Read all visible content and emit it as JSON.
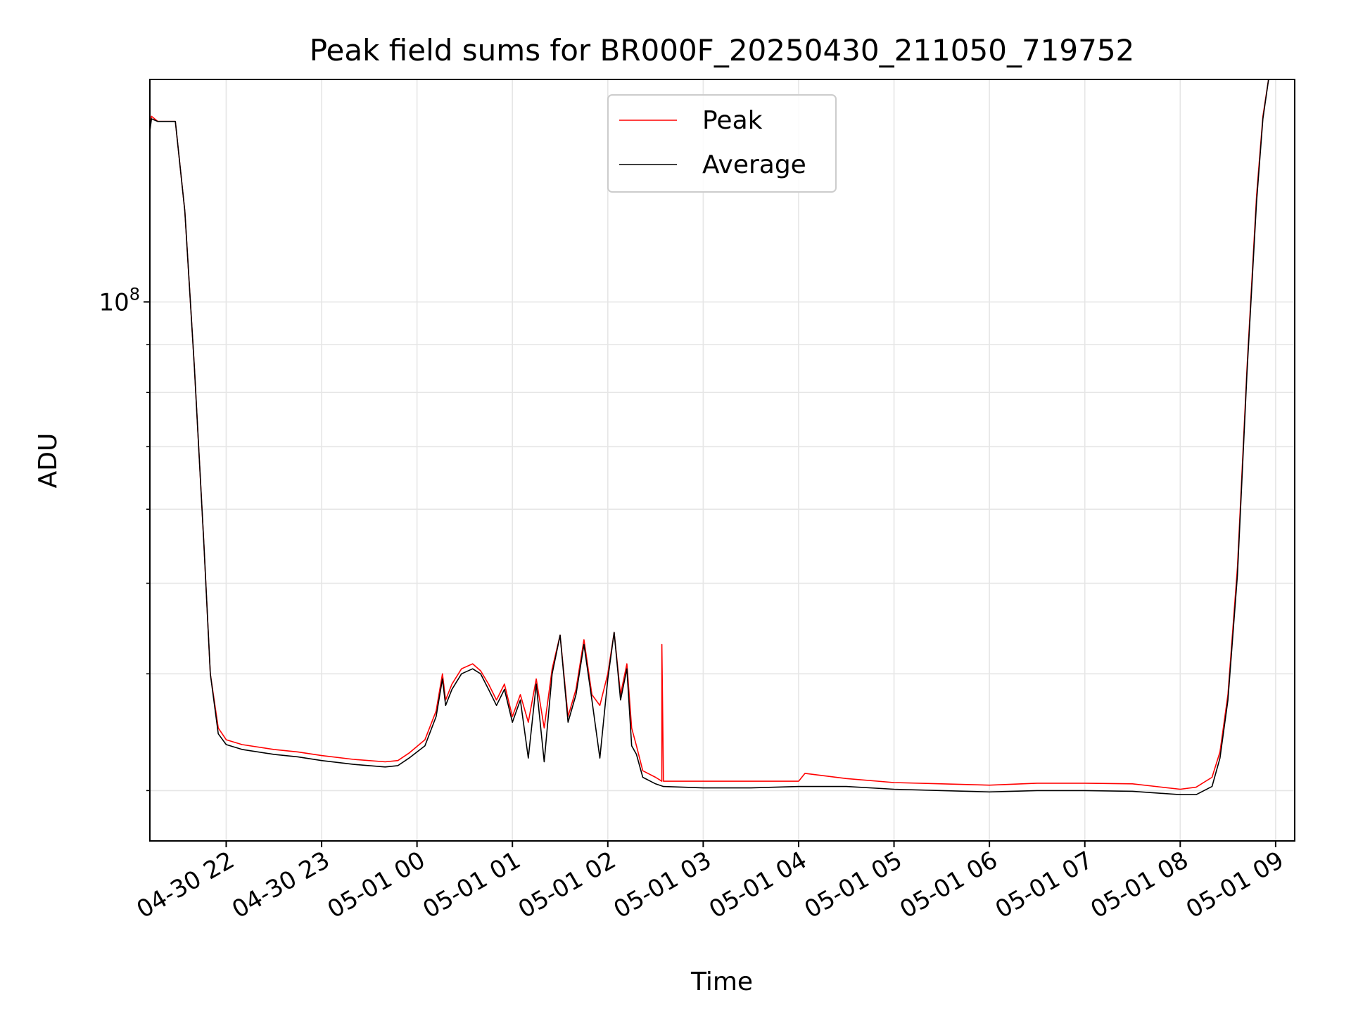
{
  "chart_data": {
    "type": "line",
    "title": "Peak field sums for BR000F_20250430_211050_719752",
    "xlabel": "Time",
    "ylabel": "ADU",
    "yscale": "log",
    "grid": true,
    "legend_position": "upper center",
    "x_tick_labels": [
      "04-30 22",
      "04-30 23",
      "05-01 00",
      "05-01 01",
      "05-01 02",
      "05-01 03",
      "05-01 04",
      "05-01 05",
      "05-01 06",
      "05-01 07",
      "05-01 08",
      "05-01 09"
    ],
    "x_ticks": [
      "2025-04-30 22:00",
      "2025-04-30 23:00",
      "2025-05-01 00:00",
      "2025-05-01 01:00",
      "2025-05-01 02:00",
      "2025-05-01 03:00",
      "2025-05-01 04:00",
      "2025-05-01 05:00",
      "2025-05-01 06:00",
      "2025-05-01 07:00",
      "2025-05-01 08:00",
      "2025-05-01 09:00"
    ],
    "x_range": [
      "2025-04-30 21:12",
      "2025-05-01 09:12"
    ],
    "y_ticks": [
      {
        "value": 100000000,
        "base": "10",
        "exponent": "8"
      }
    ],
    "ylim": [
      26500000,
      173000000
    ],
    "series": [
      {
        "name": "Peak",
        "color": "#ff0000",
        "points": [
          [
            "2025-04-30 21:11",
            148000000
          ],
          [
            "2025-04-30 21:13",
            158000000
          ],
          [
            "2025-04-30 21:17",
            156000000
          ],
          [
            "2025-04-30 21:28",
            156000000
          ],
          [
            "2025-04-30 21:34",
            125000000
          ],
          [
            "2025-04-30 21:40",
            85000000
          ],
          [
            "2025-04-30 21:46",
            55000000
          ],
          [
            "2025-04-30 21:50",
            40000000
          ],
          [
            "2025-04-30 21:55",
            35000000
          ],
          [
            "2025-04-30 22:00",
            34000000
          ],
          [
            "2025-04-30 22:10",
            33600000
          ],
          [
            "2025-04-30 22:30",
            33200000
          ],
          [
            "2025-04-30 22:45",
            33000000
          ],
          [
            "2025-04-30 23:00",
            32700000
          ],
          [
            "2025-04-30 23:20",
            32400000
          ],
          [
            "2025-04-30 23:40",
            32200000
          ],
          [
            "2025-04-30 23:48",
            32300000
          ],
          [
            "2025-04-30 23:55",
            32900000
          ],
          [
            "2025-05-01 00:05",
            34000000
          ],
          [
            "2025-05-01 00:12",
            36500000
          ],
          [
            "2025-05-01 00:16",
            40000000
          ],
          [
            "2025-05-01 00:18",
            37500000
          ],
          [
            "2025-05-01 00:22",
            39000000
          ],
          [
            "2025-05-01 00:28",
            40500000
          ],
          [
            "2025-05-01 00:35",
            41000000
          ],
          [
            "2025-05-01 00:40",
            40300000
          ],
          [
            "2025-05-01 00:45",
            39000000
          ],
          [
            "2025-05-01 00:50",
            37500000
          ],
          [
            "2025-05-01 00:55",
            39000000
          ],
          [
            "2025-05-01 01:00",
            36000000
          ],
          [
            "2025-05-01 01:05",
            38000000
          ],
          [
            "2025-05-01 01:10",
            35500000
          ],
          [
            "2025-05-01 01:15",
            39500000
          ],
          [
            "2025-05-01 01:20",
            35000000
          ],
          [
            "2025-05-01 01:25",
            40500000
          ],
          [
            "2025-05-01 01:30",
            44000000
          ],
          [
            "2025-05-01 01:35",
            36000000
          ],
          [
            "2025-05-01 01:40",
            38500000
          ],
          [
            "2025-05-01 01:45",
            43500000
          ],
          [
            "2025-05-01 01:50",
            38000000
          ],
          [
            "2025-05-01 01:55",
            37000000
          ],
          [
            "2025-05-01 02:00",
            40000000
          ],
          [
            "2025-05-01 02:04",
            44300000
          ],
          [
            "2025-05-01 02:08",
            38000000
          ],
          [
            "2025-05-01 02:12",
            41000000
          ],
          [
            "2025-05-01 02:15",
            35000000
          ],
          [
            "2025-05-01 02:18",
            33500000
          ],
          [
            "2025-05-01 02:22",
            31500000
          ],
          [
            "2025-05-01 02:30",
            31000000
          ],
          [
            "2025-05-01 02:34",
            30700000
          ],
          [
            "2025-05-01 02:34",
            43000000
          ],
          [
            "2025-05-01 02:35",
            30700000
          ],
          [
            "2025-05-01 03:00",
            30700000
          ],
          [
            "2025-05-01 03:30",
            30700000
          ],
          [
            "2025-05-01 04:00",
            30700000
          ],
          [
            "2025-05-01 04:04",
            31300000
          ],
          [
            "2025-05-01 04:30",
            30900000
          ],
          [
            "2025-05-01 05:00",
            30600000
          ],
          [
            "2025-05-01 05:30",
            30500000
          ],
          [
            "2025-05-01 06:00",
            30400000
          ],
          [
            "2025-05-01 06:30",
            30550000
          ],
          [
            "2025-05-01 07:00",
            30550000
          ],
          [
            "2025-05-01 07:30",
            30500000
          ],
          [
            "2025-05-01 08:00",
            30100000
          ],
          [
            "2025-05-01 08:10",
            30250000
          ],
          [
            "2025-05-01 08:20",
            31000000
          ],
          [
            "2025-05-01 08:25",
            33000000
          ],
          [
            "2025-05-01 08:30",
            38000000
          ],
          [
            "2025-05-01 08:36",
            52000000
          ],
          [
            "2025-05-01 08:42",
            85000000
          ],
          [
            "2025-05-01 08:48",
            130000000
          ],
          [
            "2025-05-01 08:52",
            158000000
          ],
          [
            "2025-05-01 08:56",
            175000000
          ]
        ]
      },
      {
        "name": "Average",
        "color": "#000000",
        "points": [
          [
            "2025-04-30 21:11",
            148000000
          ],
          [
            "2025-04-30 21:13",
            157000000
          ],
          [
            "2025-04-30 21:17",
            156000000
          ],
          [
            "2025-04-30 21:28",
            156000000
          ],
          [
            "2025-04-30 21:34",
            125000000
          ],
          [
            "2025-04-30 21:40",
            85000000
          ],
          [
            "2025-04-30 21:46",
            55000000
          ],
          [
            "2025-04-30 21:50",
            40000000
          ],
          [
            "2025-04-30 21:55",
            34500000
          ],
          [
            "2025-04-30 22:00",
            33600000
          ],
          [
            "2025-04-30 22:10",
            33200000
          ],
          [
            "2025-04-30 22:30",
            32800000
          ],
          [
            "2025-04-30 22:45",
            32600000
          ],
          [
            "2025-04-30 23:00",
            32300000
          ],
          [
            "2025-04-30 23:20",
            32000000
          ],
          [
            "2025-04-30 23:40",
            31800000
          ],
          [
            "2025-04-30 23:48",
            31900000
          ],
          [
            "2025-04-30 23:55",
            32500000
          ],
          [
            "2025-05-01 00:05",
            33500000
          ],
          [
            "2025-05-01 00:12",
            36000000
          ],
          [
            "2025-05-01 00:16",
            39500000
          ],
          [
            "2025-05-01 00:18",
            37000000
          ],
          [
            "2025-05-01 00:22",
            38500000
          ],
          [
            "2025-05-01 00:28",
            40000000
          ],
          [
            "2025-05-01 00:35",
            40500000
          ],
          [
            "2025-05-01 00:40",
            40000000
          ],
          [
            "2025-05-01 00:45",
            38500000
          ],
          [
            "2025-05-01 00:50",
            37000000
          ],
          [
            "2025-05-01 00:55",
            38500000
          ],
          [
            "2025-05-01 01:00",
            35500000
          ],
          [
            "2025-05-01 01:05",
            37500000
          ],
          [
            "2025-05-01 01:10",
            32500000
          ],
          [
            "2025-05-01 01:15",
            39000000
          ],
          [
            "2025-05-01 01:20",
            32200000
          ],
          [
            "2025-05-01 01:25",
            40000000
          ],
          [
            "2025-05-01 01:30",
            44000000
          ],
          [
            "2025-05-01 01:35",
            35500000
          ],
          [
            "2025-05-01 01:40",
            38000000
          ],
          [
            "2025-05-01 01:45",
            43000000
          ],
          [
            "2025-05-01 01:50",
            37500000
          ],
          [
            "2025-05-01 01:55",
            32500000
          ],
          [
            "2025-05-01 02:00",
            39500000
          ],
          [
            "2025-05-01 02:04",
            44300000
          ],
          [
            "2025-05-01 02:08",
            37500000
          ],
          [
            "2025-05-01 02:12",
            40500000
          ],
          [
            "2025-05-01 02:15",
            33500000
          ],
          [
            "2025-05-01 02:18",
            32800000
          ],
          [
            "2025-05-01 02:22",
            31000000
          ],
          [
            "2025-05-01 02:30",
            30500000
          ],
          [
            "2025-05-01 02:35",
            30300000
          ],
          [
            "2025-05-01 03:00",
            30200000
          ],
          [
            "2025-05-01 03:30",
            30200000
          ],
          [
            "2025-05-01 04:00",
            30300000
          ],
          [
            "2025-05-01 04:30",
            30300000
          ],
          [
            "2025-05-01 05:00",
            30100000
          ],
          [
            "2025-05-01 05:30",
            30000000
          ],
          [
            "2025-05-01 06:00",
            29900000
          ],
          [
            "2025-05-01 06:30",
            30000000
          ],
          [
            "2025-05-01 07:00",
            30000000
          ],
          [
            "2025-05-01 07:30",
            29950000
          ],
          [
            "2025-05-01 08:00",
            29700000
          ],
          [
            "2025-05-01 08:10",
            29700000
          ],
          [
            "2025-05-01 08:20",
            30300000
          ],
          [
            "2025-05-01 08:25",
            32500000
          ],
          [
            "2025-05-01 08:30",
            37500000
          ],
          [
            "2025-05-01 08:36",
            51000000
          ],
          [
            "2025-05-01 08:42",
            84000000
          ],
          [
            "2025-05-01 08:48",
            128000000
          ],
          [
            "2025-05-01 08:52",
            157000000
          ],
          [
            "2025-05-01 08:56",
            175000000
          ]
        ]
      }
    ]
  }
}
